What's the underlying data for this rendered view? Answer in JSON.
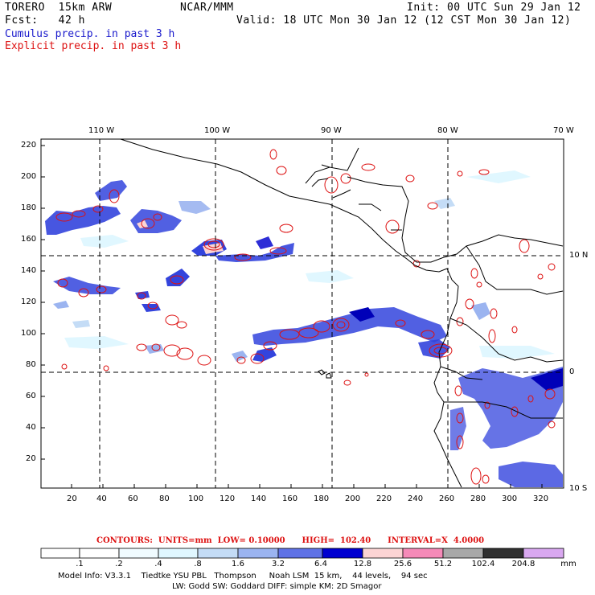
{
  "header": {
    "model": "TORERO  15km ARW",
    "org": "NCAR/MMM",
    "init": "Init: 00 UTC Sun 29 Jan 12",
    "fcst": "Fcst:   42 h",
    "valid": "Valid: 18 UTC Mon 30 Jan 12 (12 CST Mon 30 Jan 12)",
    "field1": "Cumulus precip. in past 3 h",
    "field2": "Explicit precip. in past 3 h"
  },
  "axes": {
    "lon_labels": [
      "110 W",
      "100 W",
      "90 W",
      "80 W",
      "70 W"
    ],
    "lat_labels": [
      "10 N",
      "0",
      "10 S"
    ],
    "y_ticks": [
      "220",
      "200",
      "180",
      "160",
      "140",
      "120",
      "100",
      "80",
      "60",
      "40",
      "20"
    ],
    "x_ticks": [
      "20",
      "40",
      "60",
      "80",
      "100",
      "120",
      "140",
      "160",
      "180",
      "200",
      "220",
      "240",
      "260",
      "280",
      "300",
      "320"
    ]
  },
  "contour_info": "CONTOURS:  UNITS=mm  LOW= 0.10000      HIGH=  102.40      INTERVAL=X  4.0000",
  "colorbar": {
    "labels": [
      ".1",
      ".2",
      ".4",
      ".8",
      "1.6",
      "3.2",
      "6.4",
      "12.8",
      "25.6",
      "51.2",
      "102.4",
      "204.8"
    ],
    "unit": "mm",
    "colors": [
      "#ffffff",
      "#ffffff",
      "#f0fbff",
      "#e0f7ff",
      "#c4dcf6",
      "#9bb4f0",
      "#5f72e6",
      "#2d2dd6",
      "#0000b8",
      "#fcd4d4",
      "#f58ab8",
      "#a8a8a8",
      "#303030",
      "#d9a8f0"
    ]
  },
  "footer": {
    "line1": "Model Info: V3.3.1    Tiedtke YSU PBL   Thompson     Noah LSM  15 km,    44 levels,    94 sec",
    "line2": "LW: Godd SW: Goddard DIFF: simple KM: 2D Smagor"
  }
}
